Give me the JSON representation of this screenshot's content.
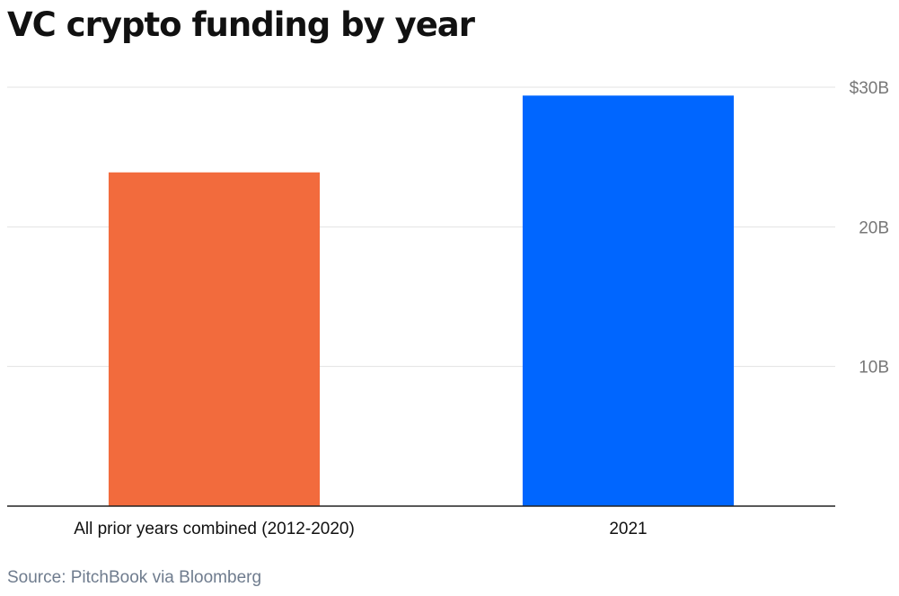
{
  "title": "VC crypto funding by year",
  "source": "Source: PitchBook via Bloomberg",
  "chart_data": {
    "type": "bar",
    "categories": [
      "All prior years combined (2012-2020)",
      "2021"
    ],
    "values": [
      23.9,
      29.4
    ],
    "bar_colors": [
      "#f26b3d",
      "#0066ff"
    ],
    "ylim": [
      0,
      30
    ],
    "yticks": [
      10,
      20,
      30
    ],
    "ytick_labels": [
      "10B",
      "20B",
      "$30B"
    ],
    "y_axis_position": "right",
    "grid": true
  }
}
